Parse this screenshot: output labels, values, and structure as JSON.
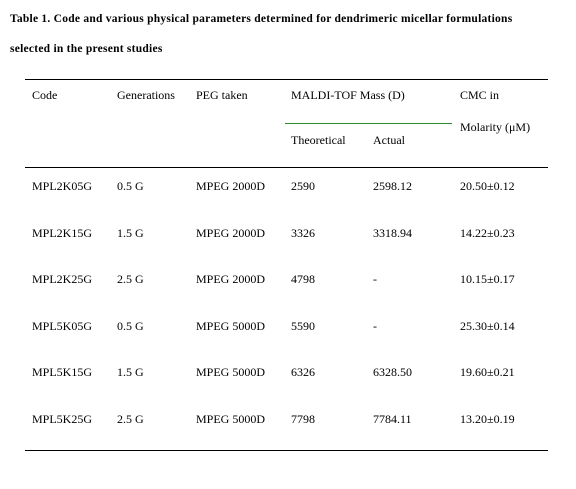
{
  "table": {
    "title": [
      "Table 1. Code and various physical parameters determined for dendrimeric micellar formulations",
      "selected in the present studies"
    ],
    "headers": [
      "Code",
      "Generations",
      "PEG taken",
      "MALDI-TOF Mass (D)",
      "CMC in"
    ],
    "cmc_unit": "Molarity (μM)",
    "subheaders": [
      "Theoretical",
      "Actual"
    ],
    "rows": [
      [
        "MPL2K05G",
        "0.5 G",
        "MPEG 2000D",
        "2590",
        "2598.12",
        "20.50±0.12"
      ],
      [
        "MPL2K15G",
        "1.5 G",
        "MPEG 2000D",
        "3326",
        "3318.94",
        "14.22±0.23"
      ],
      [
        "MPL2K25G",
        "2.5 G",
        "MPEG 2000D",
        "4798",
        "-",
        "10.15±0.17"
      ],
      [
        "MPL5K05G",
        "0.5 G",
        "MPEG 5000D",
        "5590",
        "-",
        "25.30±0.14"
      ],
      [
        "MPL5K15G",
        "1.5 G",
        "MPEG 5000D",
        "6326",
        "6328.50",
        "19.60±0.21"
      ],
      [
        "MPL5K25G",
        "2.5 G",
        "MPEG 5000D",
        "7798",
        "7784.11",
        "13.20±0.19"
      ]
    ]
  }
}
